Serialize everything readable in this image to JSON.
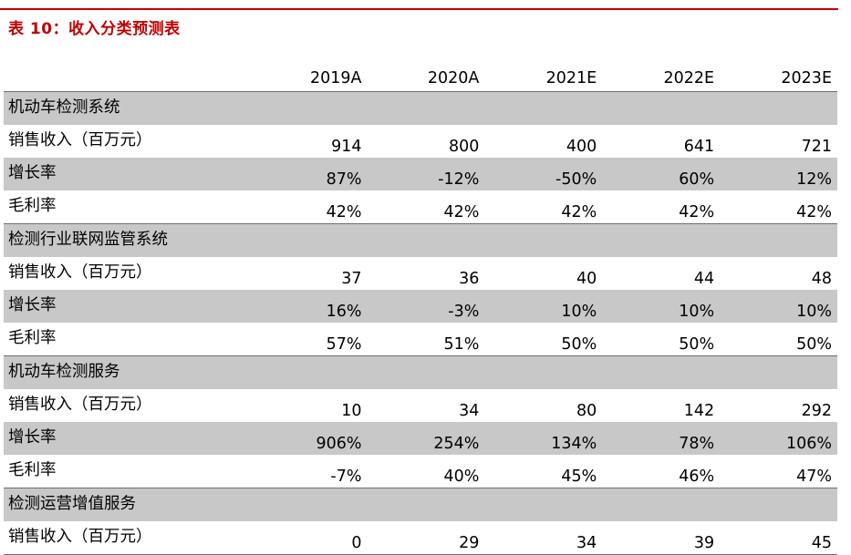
{
  "title": "表 10：收入分类预测表",
  "columns": [
    "2019A",
    "2020A",
    "2021E",
    "2022E",
    "2023E"
  ],
  "rows": [
    {
      "type": "section",
      "label": "机动车检测系统"
    },
    {
      "type": "data",
      "shade": false,
      "label": "销售收入（百万元）",
      "values": [
        "914",
        "800",
        "400",
        "641",
        "721"
      ]
    },
    {
      "type": "data",
      "shade": true,
      "label": "增长率",
      "values": [
        "87%",
        "-12%",
        "-50%",
        "60%",
        "12%"
      ]
    },
    {
      "type": "data",
      "shade": false,
      "label": "毛利率",
      "values": [
        "42%",
        "42%",
        "42%",
        "42%",
        "42%"
      ]
    },
    {
      "type": "section",
      "label": "检测行业联网监管系统"
    },
    {
      "type": "data",
      "shade": false,
      "label": "销售收入（百万元）",
      "values": [
        "37",
        "36",
        "40",
        "44",
        "48"
      ]
    },
    {
      "type": "data",
      "shade": true,
      "label": "增长率",
      "values": [
        "16%",
        "-3%",
        "10%",
        "10%",
        "10%"
      ]
    },
    {
      "type": "data",
      "shade": false,
      "label": "毛利率",
      "values": [
        "57%",
        "51%",
        "50%",
        "50%",
        "50%"
      ]
    },
    {
      "type": "section",
      "label": "机动车检测服务"
    },
    {
      "type": "data",
      "shade": false,
      "label": "销售收入（百万元）",
      "values": [
        "10",
        "34",
        "80",
        "142",
        "292"
      ]
    },
    {
      "type": "data",
      "shade": true,
      "label": "增长率",
      "values": [
        "906%",
        "254%",
        "134%",
        "78%",
        "106%"
      ]
    },
    {
      "type": "data",
      "shade": false,
      "label": "毛利率",
      "values": [
        "-7%",
        "40%",
        "45%",
        "46%",
        "47%"
      ]
    },
    {
      "type": "section",
      "label": "检测运营增值服务"
    },
    {
      "type": "data",
      "shade": false,
      "label": "销售收入（百万元）",
      "values": [
        "0",
        "29",
        "34",
        "39",
        "45"
      ]
    }
  ],
  "colors": {
    "title": "#c00000",
    "shade": "#c8c8c8"
  }
}
